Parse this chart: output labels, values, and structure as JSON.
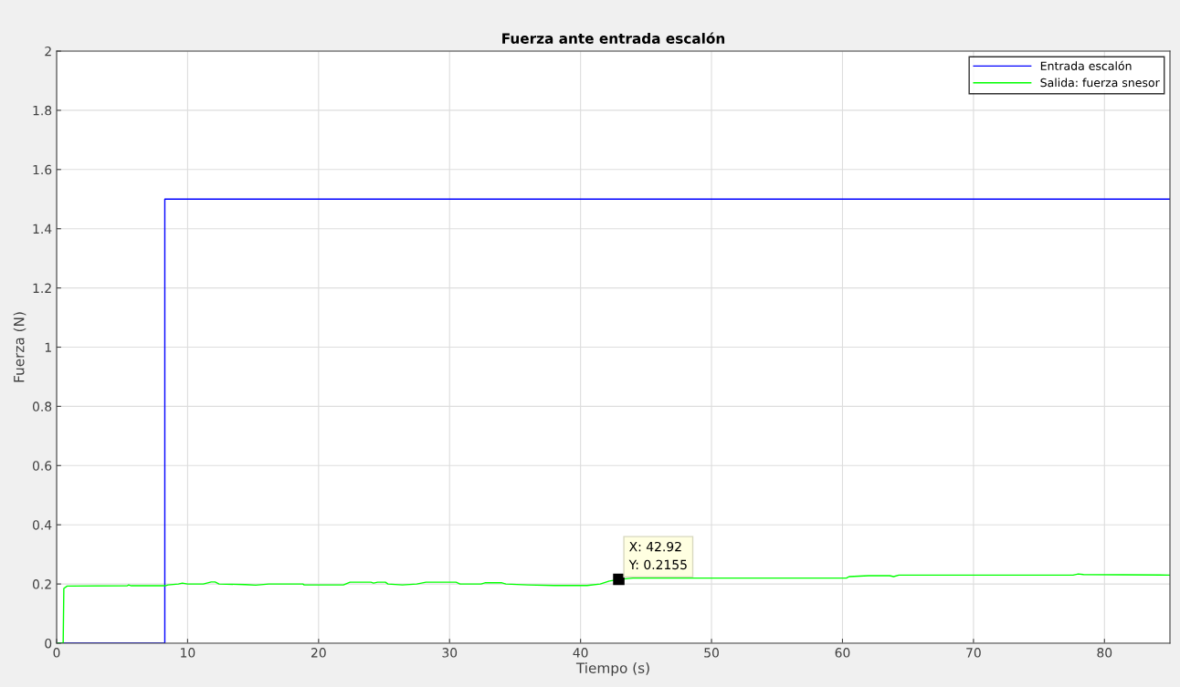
{
  "chart_data": {
    "type": "line",
    "title": "Fuerza ante entrada escalón",
    "xlabel": "Tiempo (s)",
    "ylabel": "Fuerza (N)",
    "xlim": [
      0,
      85
    ],
    "xticks": [
      0,
      10,
      20,
      30,
      40,
      50,
      60,
      70,
      80
    ],
    "ylim": [
      0,
      2
    ],
    "yticks": [
      0,
      0.2,
      0.4,
      0.6,
      0.8,
      1,
      1.2,
      1.4,
      1.6,
      1.8,
      2
    ],
    "grid": true,
    "legend": "top right",
    "marker": "none",
    "line_style": "solid",
    "annotations": [
      {
        "text": "X: 42.92\nY: 0.2155",
        "x": 42.92,
        "y": 0.2155
      }
    ],
    "series": [
      {
        "name": "Entrada escalón",
        "color": "#0000ff",
        "type": "step",
        "x": [
          0,
          8.26,
          85
        ],
        "values": [
          0,
          1.5,
          1.5
        ]
      },
      {
        "name": "Salida: fuerza snesor",
        "color": "#00ff00",
        "x": [
          0,
          0.5,
          0.55,
          0.8,
          5.4,
          5.5,
          5.7,
          8.3,
          8.5,
          9.3,
          9.6,
          10,
          11.2,
          11.8,
          12.1,
          12.4,
          14.4,
          15.2,
          16.2,
          18.8,
          18.9,
          21.9,
          22.4,
          24,
          24.2,
          24.5,
          25.1,
          25.3,
          26.4,
          27.5,
          28.2,
          30.5,
          30.8,
          32.4,
          32.7,
          34,
          34.3,
          36,
          38,
          40.5,
          41.5,
          42.2,
          42.92,
          44,
          60.3,
          60.5,
          62,
          63.6,
          63.9,
          64.3,
          77.6,
          78,
          78.4,
          85
        ],
        "values": [
          0,
          0,
          0.185,
          0.193,
          0.194,
          0.197,
          0.194,
          0.194,
          0.197,
          0.2,
          0.203,
          0.2,
          0.2,
          0.207,
          0.207,
          0.2,
          0.198,
          0.196,
          0.2,
          0.2,
          0.197,
          0.197,
          0.206,
          0.206,
          0.203,
          0.206,
          0.206,
          0.2,
          0.197,
          0.2,
          0.206,
          0.206,
          0.2,
          0.2,
          0.204,
          0.204,
          0.2,
          0.197,
          0.195,
          0.195,
          0.2,
          0.21,
          0.2155,
          0.22,
          0.22,
          0.225,
          0.228,
          0.228,
          0.225,
          0.23,
          0.23,
          0.234,
          0.232,
          0.23
        ]
      }
    ]
  }
}
